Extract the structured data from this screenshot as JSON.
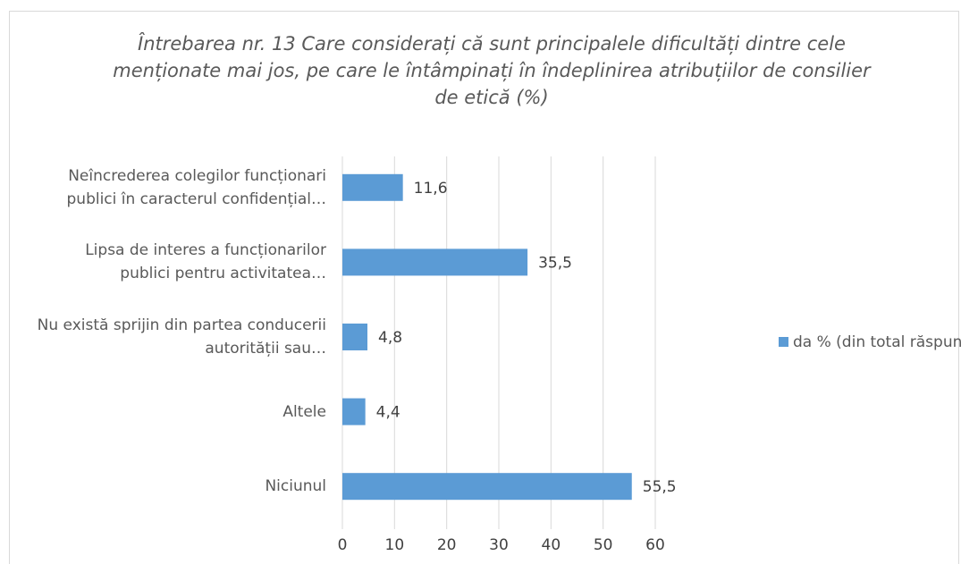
{
  "chart_data": {
    "type": "bar",
    "orientation": "horizontal",
    "title": "Întrebarea nr. 13 Care considerați că sunt principalele dificultăți dintre cele menționate mai jos, pe care le întâmpinați în îndeplinirea atribuțiilor de consilier de etică (%)",
    "categories": [
      "Neîncrederea colegilor funcționari publici în caracterul confidențial…",
      "Lipsa de interes a funcționarilor publici pentru activitatea…",
      "Nu există sprijin din partea conducerii autorității sau…",
      "Altele",
      "Niciunul"
    ],
    "series": [
      {
        "name": "da % (din total răspunsuri)",
        "color": "#5b9bd5",
        "values": [
          11.6,
          35.5,
          4.8,
          4.4,
          55.5
        ],
        "value_labels": [
          "11,6",
          "35,5",
          "4,8",
          "4,4",
          "55,5"
        ]
      }
    ],
    "xlim": [
      0,
      60
    ],
    "xticks": [
      0,
      10,
      20,
      30,
      40,
      50,
      60
    ],
    "grid": true,
    "legend": "right"
  }
}
